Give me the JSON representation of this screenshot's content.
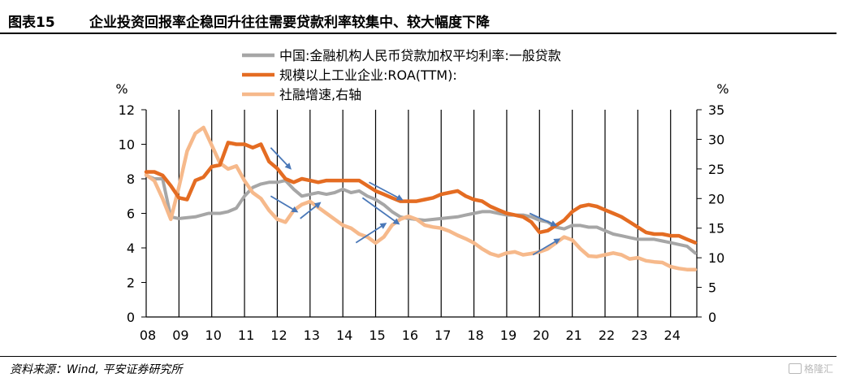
{
  "header": {
    "fig_label": "图表15",
    "title": "企业投资回报率企稳回升往往需要贷款利率较集中、较大幅度下降"
  },
  "footer": {
    "source": "资料来源：Wind, 平安证券研究所",
    "watermark": "格隆汇"
  },
  "chart_data": {
    "type": "line",
    "x_unit": "year (20XX)",
    "x_tick_labels": [
      "08",
      "09",
      "10",
      "11",
      "12",
      "13",
      "14",
      "15",
      "16",
      "17",
      "18",
      "19",
      "20",
      "21",
      "22",
      "23",
      "24"
    ],
    "x_range": [
      2008,
      2024.8
    ],
    "y_left": {
      "unit_label": "%",
      "range": [
        0,
        12
      ],
      "ticks": [
        0,
        2,
        4,
        6,
        8,
        10,
        12
      ]
    },
    "y_right": {
      "unit_label": "%",
      "range": [
        0,
        35
      ],
      "ticks": [
        0,
        5,
        10,
        15,
        20,
        25,
        30,
        35
      ]
    },
    "grid": "vertical lines at each year",
    "legend_placement": "top-center",
    "colors": {
      "loan_rate": "#A6A6A6",
      "roa": "#E46C22",
      "tsf": "#F6B98B",
      "arrow": "#4A78B8"
    },
    "series": [
      {
        "name": "中国:金融机构人民币贷款加权平均利率:一般贷款",
        "axis": "left",
        "points": [
          [
            2008.0,
            8.2
          ],
          [
            2008.25,
            8.0
          ],
          [
            2008.5,
            8.0
          ],
          [
            2008.75,
            5.8
          ],
          [
            2009.0,
            5.7
          ],
          [
            2009.5,
            5.8
          ],
          [
            2009.9,
            6.0
          ],
          [
            2010.25,
            6.0
          ],
          [
            2010.5,
            6.1
          ],
          [
            2010.75,
            6.3
          ],
          [
            2011.0,
            7.0
          ],
          [
            2011.25,
            7.5
          ],
          [
            2011.5,
            7.7
          ],
          [
            2011.75,
            7.8
          ],
          [
            2012.0,
            7.8
          ],
          [
            2012.25,
            7.9
          ],
          [
            2012.5,
            7.4
          ],
          [
            2012.75,
            7.0
          ],
          [
            2013.0,
            7.1
          ],
          [
            2013.25,
            7.2
          ],
          [
            2013.5,
            7.1
          ],
          [
            2013.75,
            7.2
          ],
          [
            2014.0,
            7.4
          ],
          [
            2014.25,
            7.2
          ],
          [
            2014.5,
            7.3
          ],
          [
            2014.75,
            7.0
          ],
          [
            2015.0,
            6.8
          ],
          [
            2015.25,
            6.5
          ],
          [
            2015.5,
            6.1
          ],
          [
            2015.75,
            5.8
          ],
          [
            2016.0,
            5.7
          ],
          [
            2016.5,
            5.6
          ],
          [
            2017.0,
            5.7
          ],
          [
            2017.5,
            5.8
          ],
          [
            2017.75,
            5.9
          ],
          [
            2018.0,
            6.0
          ],
          [
            2018.25,
            6.1
          ],
          [
            2018.5,
            6.1
          ],
          [
            2018.75,
            6.0
          ],
          [
            2019.0,
            5.9
          ],
          [
            2019.5,
            5.9
          ],
          [
            2019.75,
            5.8
          ],
          [
            2020.0,
            5.6
          ],
          [
            2020.25,
            5.5
          ],
          [
            2020.5,
            5.2
          ],
          [
            2020.75,
            5.1
          ],
          [
            2021.0,
            5.3
          ],
          [
            2021.25,
            5.3
          ],
          [
            2021.5,
            5.2
          ],
          [
            2021.75,
            5.2
          ],
          [
            2022.0,
            5.0
          ],
          [
            2022.25,
            4.8
          ],
          [
            2022.5,
            4.7
          ],
          [
            2022.75,
            4.6
          ],
          [
            2023.0,
            4.5
          ],
          [
            2023.5,
            4.5
          ],
          [
            2023.75,
            4.4
          ],
          [
            2024.0,
            4.3
          ],
          [
            2024.25,
            4.2
          ],
          [
            2024.5,
            4.1
          ],
          [
            2024.75,
            3.7
          ]
        ]
      },
      {
        "name": "规模以上工业企业:ROA(TTM):",
        "axis": "left",
        "points": [
          [
            2008.0,
            8.4
          ],
          [
            2008.25,
            8.4
          ],
          [
            2008.5,
            8.2
          ],
          [
            2008.75,
            7.6
          ],
          [
            2009.0,
            6.9
          ],
          [
            2009.25,
            6.8
          ],
          [
            2009.5,
            7.9
          ],
          [
            2009.75,
            8.1
          ],
          [
            2010.0,
            8.7
          ],
          [
            2010.25,
            8.8
          ],
          [
            2010.5,
            10.1
          ],
          [
            2010.75,
            10.0
          ],
          [
            2011.0,
            10.0
          ],
          [
            2011.25,
            9.8
          ],
          [
            2011.5,
            10.0
          ],
          [
            2011.75,
            9.0
          ],
          [
            2012.0,
            8.6
          ],
          [
            2012.25,
            8.0
          ],
          [
            2012.5,
            7.8
          ],
          [
            2012.75,
            8.0
          ],
          [
            2013.0,
            7.9
          ],
          [
            2013.25,
            7.8
          ],
          [
            2013.5,
            7.9
          ],
          [
            2013.75,
            7.9
          ],
          [
            2014.0,
            7.9
          ],
          [
            2014.5,
            7.9
          ],
          [
            2014.75,
            7.6
          ],
          [
            2015.0,
            7.3
          ],
          [
            2015.25,
            7.1
          ],
          [
            2015.5,
            6.9
          ],
          [
            2015.75,
            6.7
          ],
          [
            2016.0,
            6.7
          ],
          [
            2016.25,
            6.7
          ],
          [
            2016.5,
            6.8
          ],
          [
            2016.75,
            6.9
          ],
          [
            2017.0,
            7.1
          ],
          [
            2017.25,
            7.2
          ],
          [
            2017.5,
            7.3
          ],
          [
            2017.75,
            7.0
          ],
          [
            2018.0,
            6.8
          ],
          [
            2018.25,
            6.7
          ],
          [
            2018.5,
            6.4
          ],
          [
            2018.75,
            6.2
          ],
          [
            2019.0,
            6.0
          ],
          [
            2019.25,
            5.9
          ],
          [
            2019.5,
            5.8
          ],
          [
            2019.75,
            5.5
          ],
          [
            2020.0,
            4.9
          ],
          [
            2020.25,
            5.0
          ],
          [
            2020.5,
            5.3
          ],
          [
            2020.75,
            5.6
          ],
          [
            2021.0,
            6.1
          ],
          [
            2021.25,
            6.4
          ],
          [
            2021.5,
            6.5
          ],
          [
            2021.75,
            6.4
          ],
          [
            2022.0,
            6.2
          ],
          [
            2022.25,
            6.0
          ],
          [
            2022.5,
            5.8
          ],
          [
            2022.75,
            5.5
          ],
          [
            2023.0,
            5.2
          ],
          [
            2023.25,
            4.9
          ],
          [
            2023.5,
            4.8
          ],
          [
            2023.75,
            4.8
          ],
          [
            2024.0,
            4.7
          ],
          [
            2024.25,
            4.7
          ],
          [
            2024.5,
            4.5
          ],
          [
            2024.75,
            4.3
          ]
        ]
      },
      {
        "name": "社融增速,右轴",
        "axis": "right",
        "points": [
          [
            2008.0,
            24
          ],
          [
            2008.25,
            23
          ],
          [
            2008.5,
            20
          ],
          [
            2008.75,
            16.5
          ],
          [
            2009.0,
            22
          ],
          [
            2009.25,
            28
          ],
          [
            2009.5,
            31
          ],
          [
            2009.75,
            32
          ],
          [
            2010.0,
            29
          ],
          [
            2010.25,
            26
          ],
          [
            2010.5,
            25
          ],
          [
            2010.75,
            25.5
          ],
          [
            2011.0,
            23
          ],
          [
            2011.25,
            21
          ],
          [
            2011.5,
            20
          ],
          [
            2011.75,
            18
          ],
          [
            2012.0,
            16.5
          ],
          [
            2012.25,
            16
          ],
          [
            2012.5,
            18
          ],
          [
            2012.75,
            19
          ],
          [
            2013.0,
            19.5
          ],
          [
            2013.25,
            18.5
          ],
          [
            2013.5,
            17.5
          ],
          [
            2013.75,
            16.5
          ],
          [
            2014.0,
            15.5
          ],
          [
            2014.25,
            15
          ],
          [
            2014.5,
            14
          ],
          [
            2014.75,
            13.5
          ],
          [
            2015.0,
            12.5
          ],
          [
            2015.25,
            13.5
          ],
          [
            2015.5,
            15.5
          ],
          [
            2015.75,
            16.5
          ],
          [
            2016.0,
            17
          ],
          [
            2016.25,
            16.5
          ],
          [
            2016.5,
            15.5
          ],
          [
            2016.75,
            15.2
          ],
          [
            2017.0,
            15
          ],
          [
            2017.25,
            14.5
          ],
          [
            2017.5,
            13.8
          ],
          [
            2017.75,
            13.2
          ],
          [
            2018.0,
            12.5
          ],
          [
            2018.25,
            11.5
          ],
          [
            2018.5,
            10.7
          ],
          [
            2018.75,
            10.3
          ],
          [
            2019.0,
            10.8
          ],
          [
            2019.25,
            11
          ],
          [
            2019.5,
            10.5
          ],
          [
            2019.75,
            10.7
          ],
          [
            2020.0,
            11
          ],
          [
            2020.25,
            11.5
          ],
          [
            2020.5,
            12.5
          ],
          [
            2020.75,
            13.5
          ],
          [
            2021.0,
            13
          ],
          [
            2021.25,
            11.5
          ],
          [
            2021.5,
            10.3
          ],
          [
            2021.75,
            10.2
          ],
          [
            2022.0,
            10.5
          ],
          [
            2022.25,
            10.8
          ],
          [
            2022.5,
            10.5
          ],
          [
            2022.75,
            9.8
          ],
          [
            2023.0,
            10
          ],
          [
            2023.25,
            9.5
          ],
          [
            2023.5,
            9.3
          ],
          [
            2023.75,
            9.2
          ],
          [
            2024.0,
            8.5
          ],
          [
            2024.25,
            8.2
          ],
          [
            2024.5,
            8
          ],
          [
            2024.75,
            8
          ]
        ]
      }
    ],
    "arrows": [
      {
        "axis": "left",
        "from": [
          2011.8,
          9.8
        ],
        "to": [
          2012.4,
          8.6
        ]
      },
      {
        "axis": "left",
        "from": [
          2011.8,
          7.0
        ],
        "to": [
          2012.6,
          6.1
        ]
      },
      {
        "axis": "left",
        "from": [
          2012.7,
          5.7
        ],
        "to": [
          2013.3,
          6.6
        ]
      },
      {
        "axis": "left",
        "from": [
          2014.8,
          7.8
        ],
        "to": [
          2015.8,
          6.8
        ]
      },
      {
        "axis": "left",
        "from": [
          2014.6,
          6.9
        ],
        "to": [
          2015.7,
          5.4
        ]
      },
      {
        "axis": "left",
        "from": [
          2014.4,
          4.3
        ],
        "to": [
          2015.3,
          5.4
        ]
      },
      {
        "axis": "left",
        "from": [
          2019.7,
          6.0
        ],
        "to": [
          2020.5,
          5.3
        ]
      },
      {
        "axis": "left",
        "from": [
          2019.8,
          3.6
        ],
        "to": [
          2020.6,
          4.5
        ]
      }
    ]
  }
}
